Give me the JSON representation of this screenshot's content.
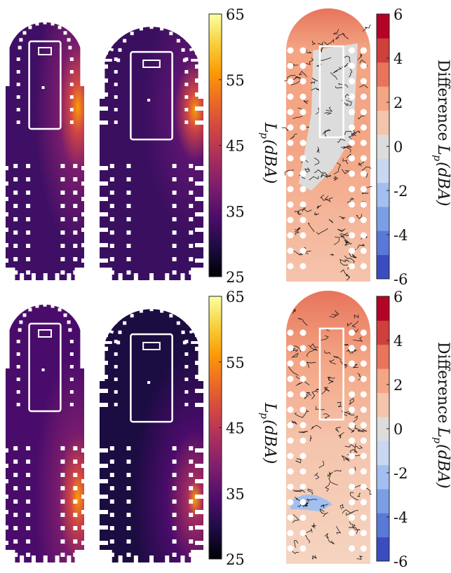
{
  "chart_data": [
    {
      "type": "heatmap",
      "row": "top",
      "panels": [
        {
          "role": "sound-pressure-map",
          "variant": "simulation-a",
          "source_side": "right-upper"
        },
        {
          "role": "sound-pressure-map",
          "variant": "simulation-b",
          "source_side": "right-upper"
        },
        {
          "role": "difference-map",
          "dominant": "positive"
        }
      ],
      "colorbar": {
        "label": "L_p (dBA)",
        "min": 25,
        "max": 65,
        "ticks": [
          "65",
          "55",
          "45",
          "35",
          "25"
        ],
        "colormap": "inferno"
      },
      "difference_colorbar": {
        "label": "Difference L_p (dBA)",
        "min": -6,
        "max": 6,
        "ticks": [
          "6",
          "4",
          "2",
          "0",
          "-2",
          "-4",
          "-6"
        ],
        "colormap": "diverging blue-white-red"
      }
    },
    {
      "type": "heatmap",
      "row": "bottom",
      "panels": [
        {
          "role": "sound-pressure-map",
          "variant": "simulation-a",
          "source_side": "right-lower"
        },
        {
          "role": "sound-pressure-map",
          "variant": "simulation-b",
          "source_side": "right-lower"
        },
        {
          "role": "difference-map",
          "dominant": "positive"
        }
      ],
      "colorbar": {
        "label": "L_p (dBA)",
        "min": 25,
        "max": 65,
        "ticks": [
          "65",
          "55",
          "45",
          "35",
          "25"
        ],
        "colormap": "inferno"
      },
      "difference_colorbar": {
        "label": "Difference L_p (dBA)",
        "min": -6,
        "max": 6,
        "ticks": [
          "6",
          "4",
          "2",
          "0",
          "-2",
          "-4",
          "-6"
        ],
        "colormap": "diverging blue-white-red"
      }
    }
  ],
  "labels": {
    "lp_main": "L",
    "lp_sub": "p",
    "lp_unit": "(dBA)",
    "diff_prefix": "Difference",
    "diff_main": "L",
    "diff_sub": "p",
    "diff_unit": "(dBA)"
  },
  "colors": {
    "inferno": [
      "#000004",
      "#1b0c41",
      "#4a0c6b",
      "#781c6d",
      "#a52c60",
      "#cf4446",
      "#ed6925",
      "#fb9b06",
      "#f7d13d",
      "#fcffa4"
    ],
    "diverging": [
      "#3b4cc0",
      "#5a78d6",
      "#7b9ee5",
      "#a3bff0",
      "#c9d7f0",
      "#dcdcdc",
      "#f5c4ac",
      "#f3a584",
      "#e7745b",
      "#cf3f3b",
      "#b40426"
    ]
  }
}
